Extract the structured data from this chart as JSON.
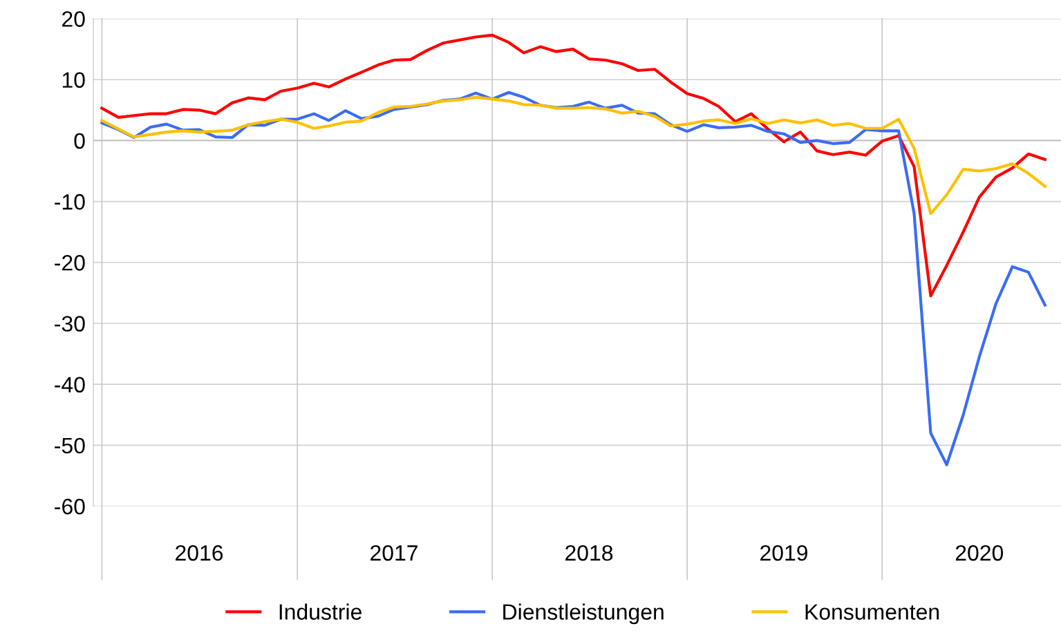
{
  "chart_data": {
    "type": "line",
    "x": [
      "2016-01",
      "2016-02",
      "2016-03",
      "2016-04",
      "2016-05",
      "2016-06",
      "2016-07",
      "2016-08",
      "2016-09",
      "2016-10",
      "2016-11",
      "2016-12",
      "2017-01",
      "2017-02",
      "2017-03",
      "2017-04",
      "2017-05",
      "2017-06",
      "2017-07",
      "2017-08",
      "2017-09",
      "2017-10",
      "2017-11",
      "2017-12",
      "2018-01",
      "2018-02",
      "2018-03",
      "2018-04",
      "2018-05",
      "2018-06",
      "2018-07",
      "2018-08",
      "2018-09",
      "2018-10",
      "2018-11",
      "2018-12",
      "2019-01",
      "2019-02",
      "2019-03",
      "2019-04",
      "2019-05",
      "2019-06",
      "2019-07",
      "2019-08",
      "2019-09",
      "2019-10",
      "2019-11",
      "2019-12",
      "2020-01",
      "2020-02",
      "2020-03",
      "2020-04",
      "2020-05",
      "2020-06",
      "2020-07",
      "2020-08",
      "2020-09",
      "2020-10",
      "2020-11"
    ],
    "series": [
      {
        "name": "Industrie",
        "color": "#ff0000",
        "values": [
          5.3,
          3.8,
          4.1,
          4.4,
          4.4,
          5.1,
          5.0,
          4.4,
          6.2,
          7.0,
          6.7,
          8.1,
          8.6,
          9.4,
          8.8,
          10.1,
          11.2,
          12.4,
          13.2,
          13.3,
          14.8,
          16.0,
          16.5,
          17.0,
          17.3,
          16.1,
          14.4,
          15.4,
          14.6,
          15.0,
          13.4,
          13.2,
          12.6,
          11.5,
          11.7,
          9.6,
          7.7,
          6.9,
          5.6,
          3.1,
          4.4,
          1.9,
          -0.2,
          1.4,
          -1.7,
          -2.3,
          -1.9,
          -2.4,
          -0.1,
          0.8,
          -4.3,
          -25.5,
          -20.5,
          -15,
          -9.3,
          -6,
          -4.5,
          -2.2,
          -3.1
        ]
      },
      {
        "name": "Dienstleistungen",
        "color": "#3a6cf4",
        "values": [
          2.9,
          1.8,
          0.5,
          2.2,
          2.7,
          1.7,
          1.8,
          0.6,
          0.5,
          2.6,
          2.5,
          3.5,
          3.5,
          4.4,
          3.3,
          4.9,
          3.6,
          4.0,
          5.1,
          5.5,
          5.9,
          6.6,
          6.8,
          7.8,
          6.8,
          7.9,
          7.1,
          5.8,
          5.4,
          5.6,
          6.3,
          5.3,
          5.8,
          4.5,
          4.4,
          2.6,
          1.5,
          2.6,
          2.1,
          2.2,
          2.5,
          1.5,
          1.1,
          -0.3,
          0.0,
          -0.5,
          -0.3,
          1.8,
          1.6,
          1.6,
          -12,
          -48,
          -53.2,
          -45,
          -35.5,
          -26.8,
          -20.7,
          -21.6,
          -27
        ]
      },
      {
        "name": "Konsumenten",
        "color": "#ffc000",
        "values": [
          3.3,
          1.9,
          0.6,
          1.0,
          1.4,
          1.6,
          1.4,
          1.5,
          1.7,
          2.6,
          3.1,
          3.5,
          3.0,
          2.0,
          2.4,
          3.0,
          3.2,
          4.6,
          5.5,
          5.6,
          6.0,
          6.5,
          6.7,
          7.1,
          6.8,
          6.5,
          5.9,
          5.8,
          5.3,
          5.3,
          5.4,
          5.2,
          4.5,
          4.8,
          4.0,
          2.4,
          2.7,
          3.2,
          3.4,
          2.8,
          3.6,
          2.8,
          3.4,
          2.9,
          3.4,
          2.5,
          2.8,
          2.0,
          2.0,
          3.5,
          -1.3,
          -12,
          -8.9,
          -4.7,
          -5.0,
          -4.6,
          -3.8,
          -5.4,
          -7.5
        ]
      }
    ],
    "xlim": [
      "2015-12-16",
      "2020-12-01"
    ],
    "xticks": [
      {
        "value": "2016-01-01",
        "label": null
      },
      {
        "value": "2016-07-01",
        "label": "2016"
      },
      {
        "value": "2017-01-01",
        "label": null
      },
      {
        "value": "2017-07-01",
        "label": "2017"
      },
      {
        "value": "2018-01-01",
        "label": null
      },
      {
        "value": "2018-07-01",
        "label": "2018"
      },
      {
        "value": "2019-01-01",
        "label": null
      },
      {
        "value": "2019-07-01",
        "label": "2019"
      },
      {
        "value": "2020-01-01",
        "label": null
      },
      {
        "value": "2020-07-01",
        "label": "2020"
      }
    ],
    "ylim": [
      -60,
      20
    ],
    "yticks": [
      -60,
      -50,
      -40,
      -30,
      -20,
      -10,
      0,
      10,
      20
    ],
    "grid": true,
    "legend": "bottom",
    "marker": "none",
    "line_style": "solid"
  }
}
